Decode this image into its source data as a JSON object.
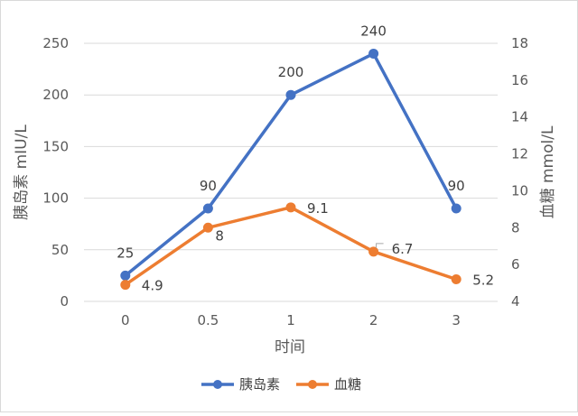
{
  "chart_data": {
    "type": "line",
    "categories": [
      "0",
      "0.5",
      "1",
      "2",
      "3"
    ],
    "series": [
      {
        "name": "胰岛素",
        "axis": "left",
        "values": [
          25,
          90,
          200,
          240,
          90
        ],
        "labels": [
          "25",
          "90",
          "200",
          "240",
          "90"
        ],
        "color": "#4472c4"
      },
      {
        "name": "血糖",
        "axis": "right",
        "values": [
          4.9,
          8,
          9.1,
          6.7,
          5.2
        ],
        "labels": [
          "4.9",
          "8",
          "9.1",
          "6.7",
          "5.2"
        ],
        "color": "#ed7d31"
      }
    ],
    "xlabel": "时间",
    "ylabel": "胰岛素 mIU/L",
    "y2label": "血糖 mmol/L",
    "ylim": [
      0,
      250
    ],
    "y_ticks": [
      "0",
      "50",
      "100",
      "150",
      "200",
      "250"
    ],
    "y2lim": [
      4,
      18
    ],
    "y2_ticks": [
      "4",
      "6",
      "8",
      "10",
      "12",
      "14",
      "16",
      "18"
    ],
    "grid": true,
    "legend_position": "bottom"
  }
}
